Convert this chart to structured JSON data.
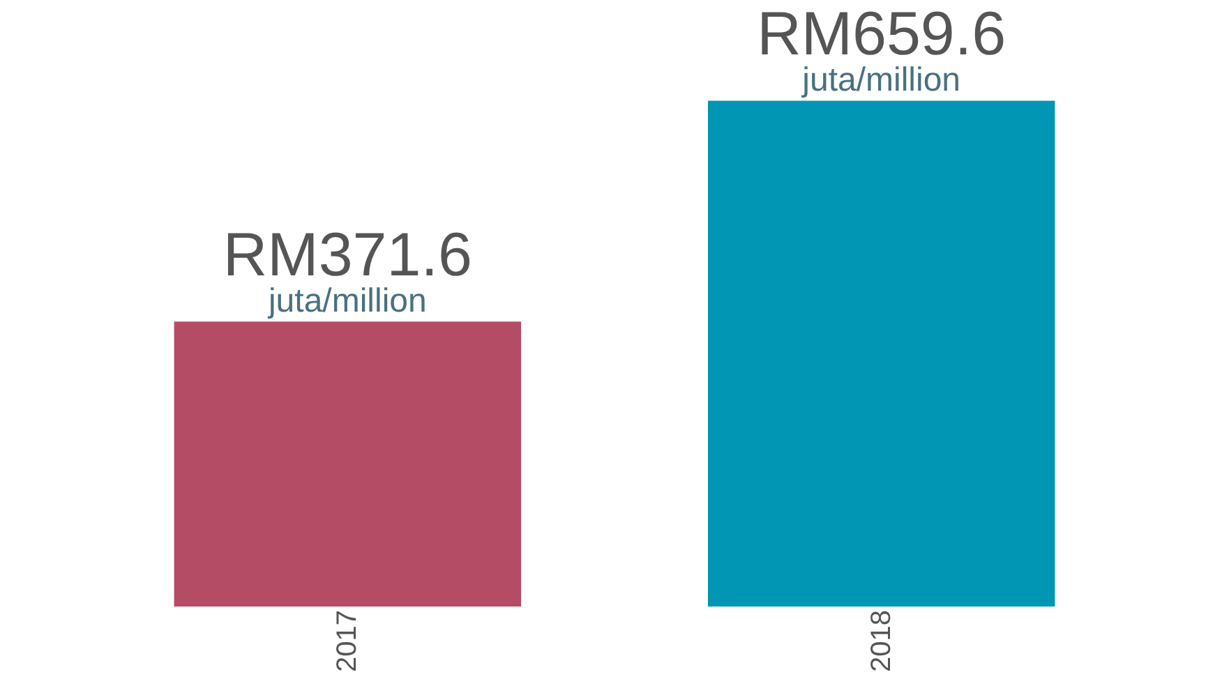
{
  "chart_data": {
    "type": "bar",
    "categories": [
      "2017",
      "2018"
    ],
    "values": [
      371.6,
      659.6
    ],
    "colors": [
      "#b54c66",
      "#0096b4"
    ],
    "value_labels": [
      "RM371.6",
      "RM659.6"
    ],
    "annotations": [
      {
        "text": "juta/million",
        "x": "2017",
        "y": 371.6
      },
      {
        "text": "juta/million",
        "x": "2018",
        "y": 659.6
      }
    ]
  }
}
